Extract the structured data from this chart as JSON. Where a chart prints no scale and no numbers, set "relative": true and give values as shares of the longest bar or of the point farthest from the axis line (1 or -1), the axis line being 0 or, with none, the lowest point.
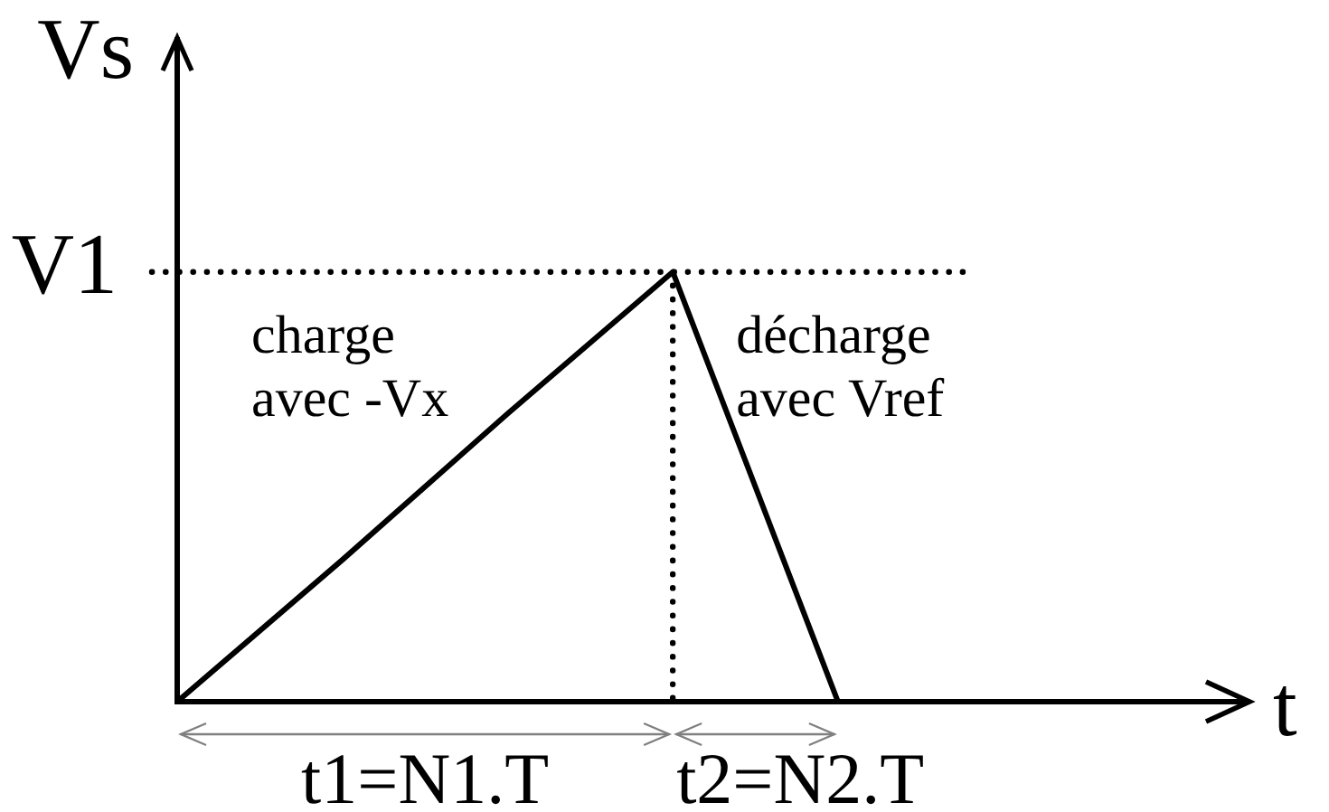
{
  "chart_data": {
    "type": "line",
    "relative": true,
    "xlabel": "t",
    "ylabel": "Vs",
    "categories": [
      null,
      null,
      null,
      null,
      null
    ],
    "series": [
      {
        "color": "#000000",
        "values": [
          0,
          0.33,
          0.67,
          1,
          0
        ]
      }
    ],
    "ref_lines": [
      {
        "axis": "y",
        "value": 1,
        "label": "V1",
        "line_style": "dotted"
      }
    ],
    "annotations": [
      "charge\navec -Vx",
      "décharge\navec Vref",
      "t1=N1.T",
      "t2=N2.T"
    ]
  }
}
